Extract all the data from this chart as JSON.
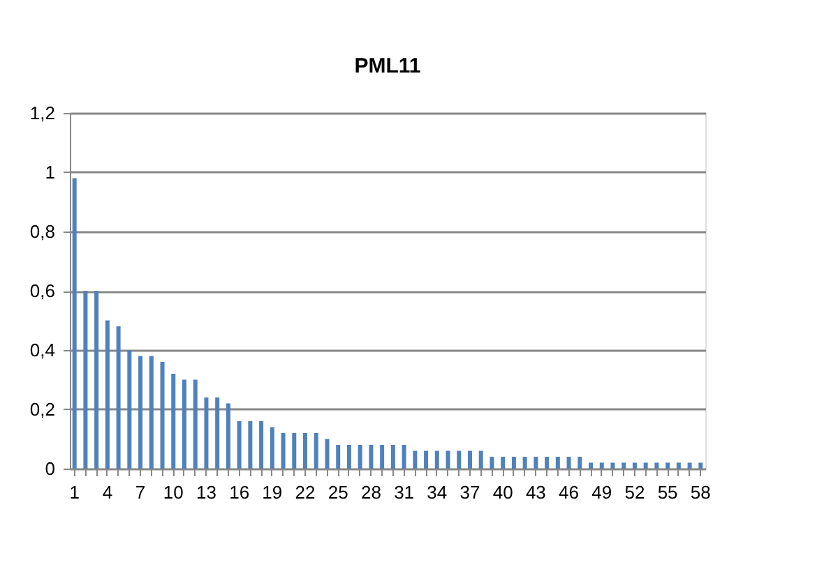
{
  "chart_data": {
    "type": "bar",
    "title": "PML11",
    "categories": [
      "1",
      null,
      null,
      "4",
      null,
      null,
      "7",
      null,
      null,
      "10",
      null,
      null,
      "13",
      null,
      null,
      "16",
      null,
      null,
      "19",
      null,
      null,
      "22",
      null,
      null,
      "25",
      null,
      null,
      "28",
      null,
      null,
      "31",
      null,
      null,
      "34",
      null,
      null,
      "37",
      null,
      null,
      "40",
      null,
      null,
      "43",
      null,
      null,
      "46",
      null,
      null,
      "49",
      null,
      null,
      "52",
      null,
      null,
      "55",
      null,
      null,
      "58"
    ],
    "values": [
      0.98,
      0.6,
      0.6,
      0.5,
      0.48,
      0.4,
      0.38,
      0.38,
      0.36,
      0.32,
      0.3,
      0.3,
      0.24,
      0.24,
      0.22,
      0.16,
      0.16,
      0.16,
      0.14,
      0.12,
      0.12,
      0.12,
      0.12,
      0.1,
      0.08,
      0.08,
      0.08,
      0.08,
      0.08,
      0.08,
      0.08,
      0.06,
      0.06,
      0.06,
      0.06,
      0.06,
      0.06,
      0.06,
      0.04,
      0.04,
      0.04,
      0.04,
      0.04,
      0.04,
      0.04,
      0.04,
      0.04,
      0.02,
      0.02,
      0.02,
      0.02,
      0.02,
      0.02,
      0.02,
      0.02,
      0.02,
      0.02,
      0.02
    ],
    "color": "#4f81bd",
    "ylim": [
      0,
      1.2
    ],
    "yticks": [
      0,
      {
        "value": 0.2,
        "label": "0,2"
      },
      {
        "value": 0.4,
        "label": "0,4"
      },
      {
        "value": 0.6,
        "label": "0,6"
      },
      {
        "value": 0.8,
        "label": "0,8"
      },
      1,
      {
        "value": 1.2,
        "label": "1,2"
      }
    ],
    "grid": "y"
  }
}
